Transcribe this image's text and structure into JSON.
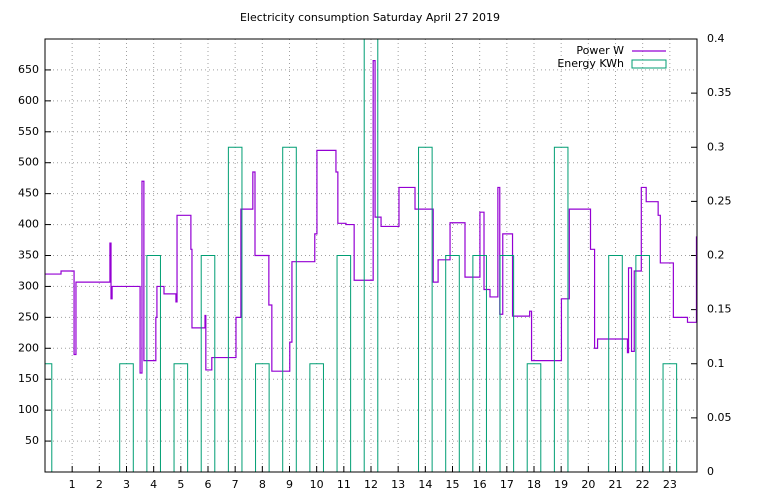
{
  "chart_data": {
    "type": "line",
    "title": "Electricity consumption Saturday April 27 2019",
    "xlim": [
      0,
      24
    ],
    "xticks": [
      1,
      2,
      3,
      4,
      5,
      6,
      7,
      8,
      9,
      10,
      11,
      12,
      13,
      14,
      15,
      16,
      17,
      18,
      19,
      20,
      21,
      22,
      23
    ],
    "ylim": [
      0,
      700
    ],
    "yticks": [
      50,
      100,
      150,
      200,
      250,
      300,
      350,
      400,
      450,
      500,
      550,
      600,
      650
    ],
    "y2lim": [
      0,
      0.4
    ],
    "y2ticks": [
      0,
      0.05,
      0.1,
      0.15,
      0.2,
      0.25,
      0.3,
      0.35,
      0.4
    ],
    "grid": true,
    "legend": "top-right",
    "series": [
      {
        "name": "Power W",
        "color": "#9400d3",
        "style": "steps",
        "x": [
          0,
          0.59,
          1.07,
          1.14,
          2.39,
          2.43,
          2.47,
          3.5,
          3.57,
          3.64,
          4.08,
          4.12,
          4.38,
          4.82,
          4.86,
          5.37,
          5.41,
          5.89,
          5.92,
          6.14,
          7.03,
          7.21,
          7.65,
          7.73,
          8.24,
          8.35,
          9.01,
          9.09,
          9.93,
          10.01,
          10.71,
          10.78,
          11.08,
          11.38,
          12.08,
          12.15,
          12.37,
          13.03,
          13.62,
          14.29,
          14.47,
          14.91,
          15.46,
          16.01,
          16.16,
          16.38,
          16.67,
          16.74,
          16.85,
          17.21,
          17.84,
          17.91,
          19.01,
          19.3,
          20.08,
          20.23,
          20.34,
          21.44,
          21.48,
          21.59,
          21.69,
          21.95,
          22.13,
          22.57,
          22.65,
          23.13,
          23.65,
          23.98
        ],
        "values": [
          320,
          325,
          190,
          307,
          370,
          280,
          300,
          160,
          470,
          180,
          250,
          300,
          288,
          275,
          415,
          360,
          233,
          253,
          165,
          185,
          250,
          425,
          485,
          350,
          270,
          163,
          210,
          340,
          385,
          520,
          485,
          402,
          400,
          310,
          665,
          412,
          397,
          460,
          425,
          307,
          343,
          403,
          315,
          420,
          295,
          283,
          460,
          255,
          385,
          252,
          260,
          180,
          280,
          425,
          360,
          200,
          215,
          193,
          330,
          195,
          325,
          460,
          437,
          415,
          338,
          250,
          242,
          380
        ]
      },
      {
        "name": "Energy KWh",
        "color": "#009e73",
        "style": "boxes",
        "axis": "y2",
        "x": [
          0,
          3,
          4,
          5,
          6,
          7,
          8,
          9,
          10,
          11,
          12,
          14,
          15,
          16,
          17,
          18,
          19,
          21,
          22,
          23
        ],
        "values": [
          0.1,
          0.1,
          0.2,
          0.1,
          0.2,
          0.3,
          0.1,
          0.3,
          0.1,
          0.2,
          0.4,
          0.3,
          0.2,
          0.2,
          0.2,
          0.1,
          0.3,
          0.2,
          0.2,
          0.1
        ]
      }
    ]
  }
}
